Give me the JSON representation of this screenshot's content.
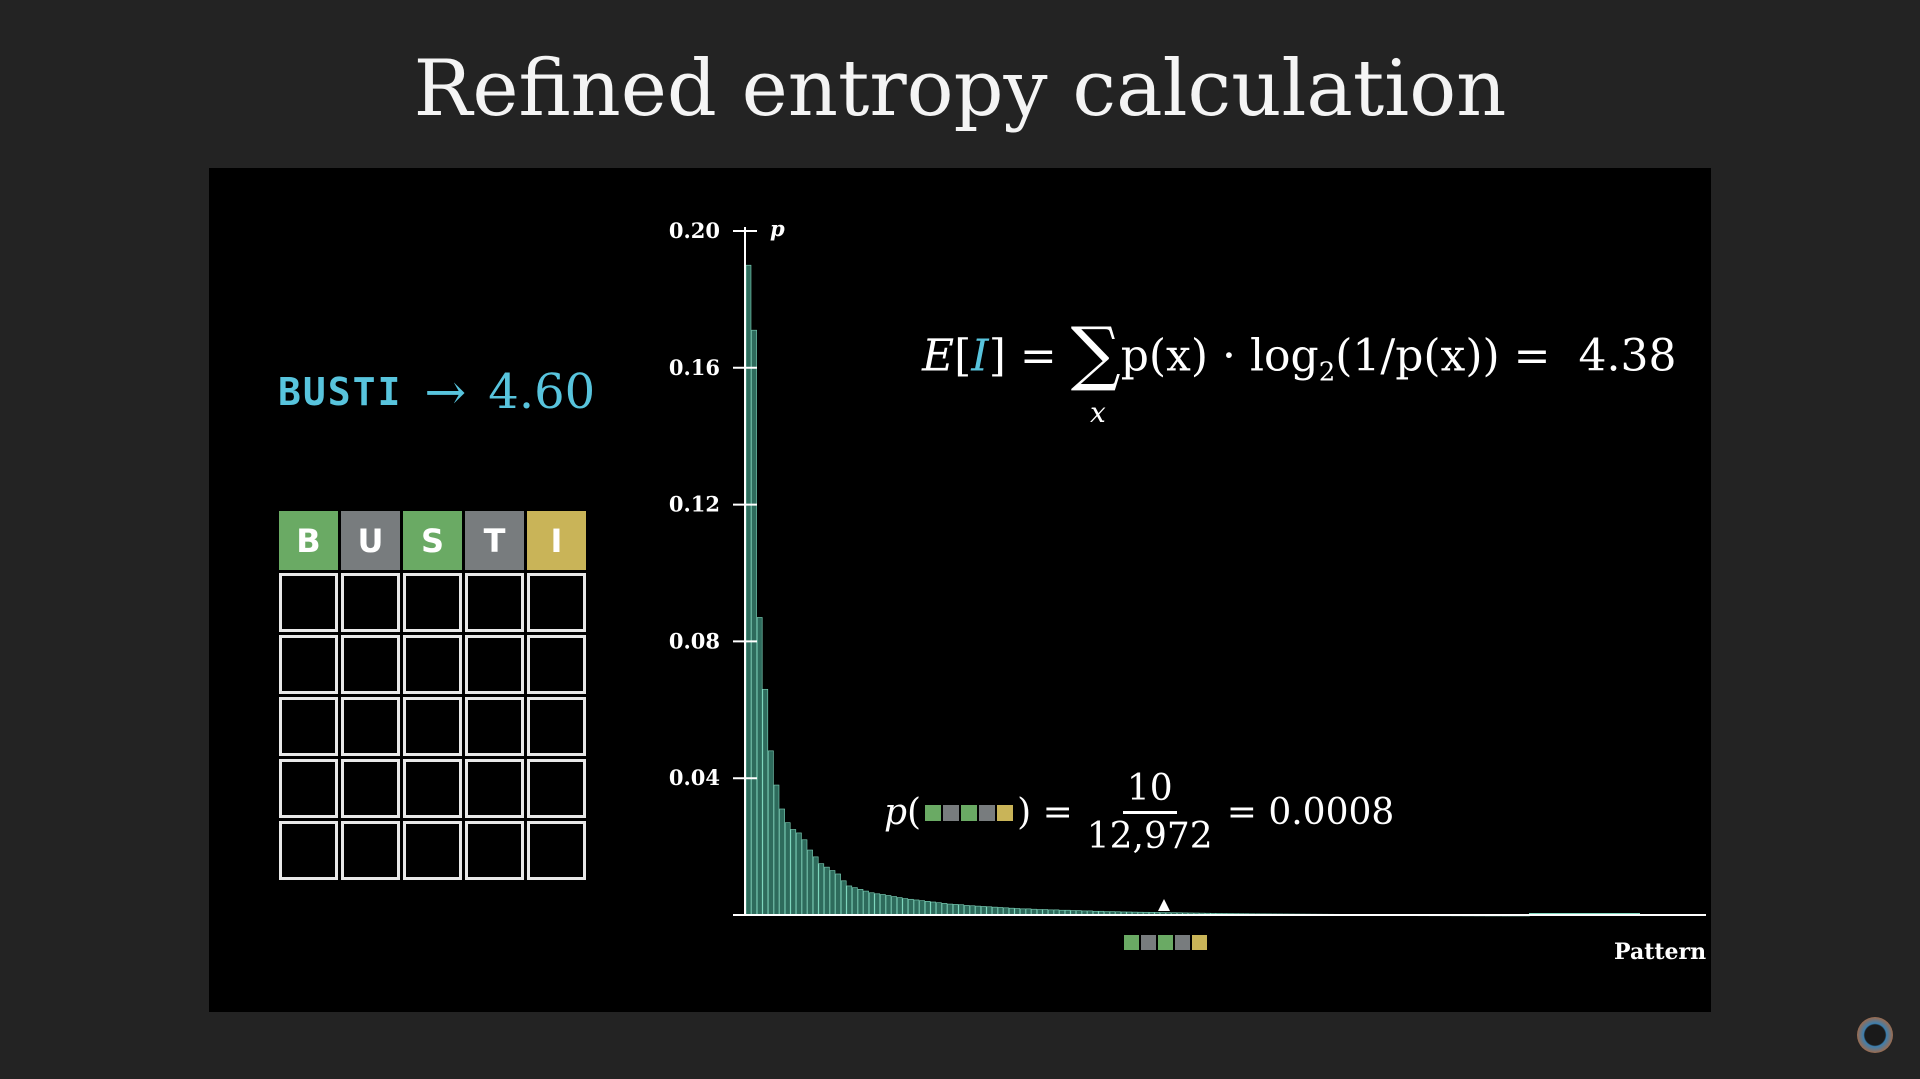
{
  "title": "Refined entropy calculation",
  "word": "BUSTI",
  "arrow": "→",
  "word_score": "4.60",
  "grid": {
    "rows": [
      [
        {
          "letter": "B",
          "state": "green"
        },
        {
          "letter": "U",
          "state": "grey"
        },
        {
          "letter": "S",
          "state": "green"
        },
        {
          "letter": "T",
          "state": "grey"
        },
        {
          "letter": "I",
          "state": "yellow"
        }
      ],
      [
        {
          "letter": "",
          "state": "empty"
        },
        {
          "letter": "",
          "state": "empty"
        },
        {
          "letter": "",
          "state": "empty"
        },
        {
          "letter": "",
          "state": "empty"
        },
        {
          "letter": "",
          "state": "empty"
        }
      ],
      [
        {
          "letter": "",
          "state": "empty"
        },
        {
          "letter": "",
          "state": "empty"
        },
        {
          "letter": "",
          "state": "empty"
        },
        {
          "letter": "",
          "state": "empty"
        },
        {
          "letter": "",
          "state": "empty"
        }
      ],
      [
        {
          "letter": "",
          "state": "empty"
        },
        {
          "letter": "",
          "state": "empty"
        },
        {
          "letter": "",
          "state": "empty"
        },
        {
          "letter": "",
          "state": "empty"
        },
        {
          "letter": "",
          "state": "empty"
        }
      ],
      [
        {
          "letter": "",
          "state": "empty"
        },
        {
          "letter": "",
          "state": "empty"
        },
        {
          "letter": "",
          "state": "empty"
        },
        {
          "letter": "",
          "state": "empty"
        },
        {
          "letter": "",
          "state": "empty"
        }
      ],
      [
        {
          "letter": "",
          "state": "empty"
        },
        {
          "letter": "",
          "state": "empty"
        },
        {
          "letter": "",
          "state": "empty"
        },
        {
          "letter": "",
          "state": "empty"
        },
        {
          "letter": "",
          "state": "empty"
        }
      ]
    ]
  },
  "colors": {
    "green": "#6aaa64",
    "grey": "#787c7e",
    "yellow": "#c9b458",
    "accent_blue": "#58c4dd",
    "bar": "#2e6b5c",
    "bar_edge": "#7fd6bd"
  },
  "formula": {
    "lhs_E": "E",
    "lhs_I": "I",
    "sum_symbol": "∑",
    "sum_index": "x",
    "body_1": "p(x) · log",
    "log_base": "2",
    "body_2": "(1/p(x)) =",
    "result": "4.38"
  },
  "prob_example": {
    "p": "p",
    "open": "(",
    "close": ") =",
    "numerator": "10",
    "denominator": "12,972",
    "result": "= 0.0008",
    "pattern": [
      "green",
      "grey",
      "green",
      "grey",
      "yellow"
    ]
  },
  "chart_data": {
    "type": "bar",
    "ylabel": "p",
    "xlabel": "Pattern",
    "ylim": [
      0,
      0.2
    ],
    "yticks": [
      "0.20",
      "0.16",
      "0.12",
      "0.08",
      "0.04"
    ],
    "ytick_values": [
      0.2,
      0.16,
      0.12,
      0.08,
      0.04
    ],
    "values": [
      0.19,
      0.171,
      0.087,
      0.066,
      0.048,
      0.038,
      0.031,
      0.027,
      0.025,
      0.024,
      0.022,
      0.019,
      0.017,
      0.015,
      0.014,
      0.013,
      0.012,
      0.01,
      0.0085,
      0.008,
      0.0075,
      0.007,
      0.0065,
      0.0062,
      0.006,
      0.0057,
      0.0054,
      0.0051,
      0.0048,
      0.0046,
      0.0044,
      0.0042,
      0.004,
      0.0038,
      0.0036,
      0.0034,
      0.0032,
      0.0031,
      0.003,
      0.0028,
      0.0027,
      0.0026,
      0.0025,
      0.0024,
      0.0023,
      0.0022,
      0.0021,
      0.002,
      0.0019,
      0.0018,
      0.0018,
      0.0017,
      0.0016,
      0.0016,
      0.0015,
      0.0015,
      0.0014,
      0.0014,
      0.0013,
      0.0013,
      0.0012,
      0.0012,
      0.0011,
      0.0011,
      0.001,
      0.001,
      0.00095,
      0.0009,
      0.00088,
      0.00085,
      0.00082,
      0.0008,
      0.00078,
      0.00075,
      0.00072,
      0.0007,
      0.00068,
      0.00065,
      0.00062,
      0.0006,
      0.00058,
      0.00055,
      0.00052,
      0.0005,
      0.00048,
      0.00046,
      0.00044,
      0.00042,
      0.0004,
      0.00038,
      0.00036,
      0.00035,
      0.00034,
      0.00033,
      0.00032,
      0.00031,
      0.0003,
      0.00029,
      0.00028,
      0.00027,
      0.00026,
      0.00025,
      0.00024,
      0.00023,
      0.00022,
      0.00021,
      0.0002,
      0.00019,
      0.00018,
      0.00017,
      0.00016,
      0.00015,
      0.00014,
      0.00013,
      0.00012,
      0.00011,
      0.0001,
      0.0001,
      9e-05,
      9e-05,
      8e-05,
      8e-05,
      7e-05,
      7e-05,
      6e-05,
      6e-05,
      5e-05,
      5e-05,
      4e-05,
      4e-05,
      3e-05,
      3e-05,
      2e-05,
      2e-05,
      2e-05,
      1e-05,
      1e-05,
      1e-05,
      1e-05,
      1e-05
    ],
    "marker_value": 0.0008,
    "grid": false
  }
}
